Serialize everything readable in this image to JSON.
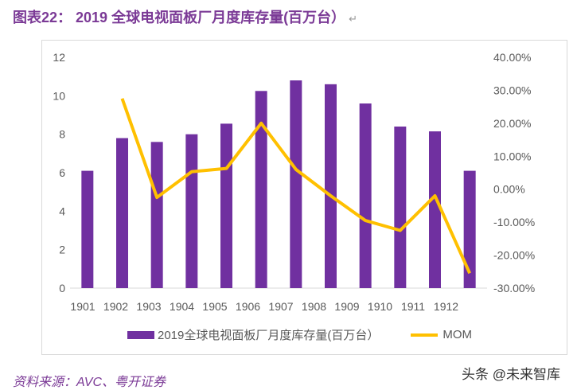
{
  "title": "图表22： 2019 全球电视面板厂月度库存量(百万台）",
  "source": "资料来源：AVC、粤开证券",
  "watermark": "头条 @未来智库",
  "chart_data": {
    "type": "bar+line",
    "categories": [
      "1901",
      "1902",
      "1903",
      "1904",
      "1905",
      "1906",
      "1907",
      "1908",
      "1909",
      "1910",
      "1911",
      "1912"
    ],
    "series": [
      {
        "name": "2019全球电视面板厂月度库存量(百万台）",
        "type": "bar",
        "axis": "left",
        "color": "#7030a0",
        "values": [
          6.1,
          7.8,
          7.6,
          8.0,
          8.55,
          10.25,
          10.8,
          10.6,
          9.6,
          8.4,
          8.15,
          6.1
        ]
      },
      {
        "name": "MOM",
        "type": "line",
        "axis": "right",
        "color": "#ffc000",
        "values": [
          null,
          27.5,
          -2.5,
          5.3,
          6.3,
          20.0,
          6.0,
          -2.0,
          -9.5,
          -12.5,
          -2.0,
          -25.5
        ]
      }
    ],
    "left_axis": {
      "ylim": [
        0,
        12
      ],
      "ticks": [
        "0",
        "2",
        "4",
        "6",
        "8",
        "10",
        "12"
      ]
    },
    "right_axis": {
      "ylim": [
        -30,
        40
      ],
      "ticks": [
        "-30.00%",
        "-20.00%",
        "-10.00%",
        "0.00%",
        "10.00%",
        "20.00%",
        "30.00%",
        "40.00%"
      ]
    },
    "grid": false,
    "legend": "bottom"
  }
}
